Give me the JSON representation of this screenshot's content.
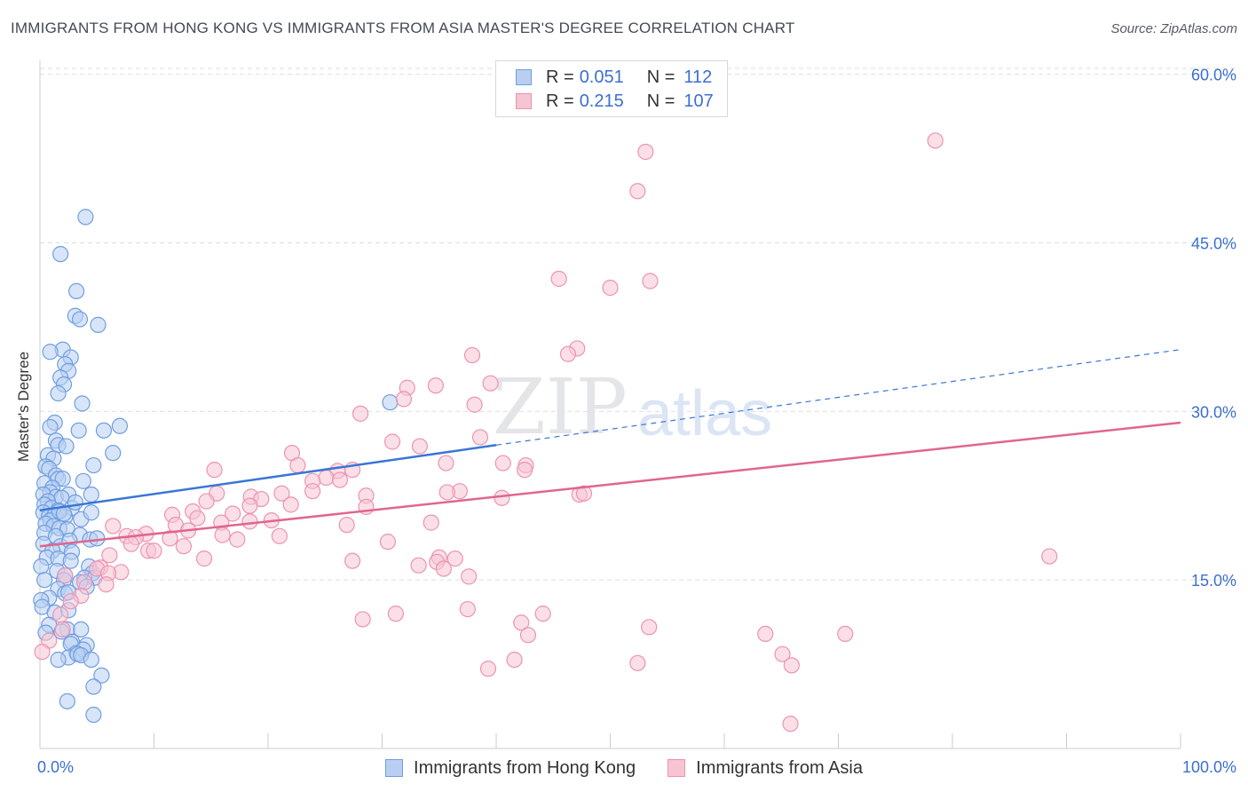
{
  "header": {
    "title": "IMMIGRANTS FROM HONG KONG VS IMMIGRANTS FROM ASIA MASTER'S DEGREE CORRELATION CHART",
    "source": "Source: ZipAtlas.com"
  },
  "watermark": {
    "zip": "ZIP",
    "atlas": "atlas"
  },
  "legend_top": {
    "rows": [
      {
        "r_label": "R =",
        "r_value": "0.051",
        "n_label": "N =",
        "n_value": "112"
      },
      {
        "r_label": "R =",
        "r_value": "0.215",
        "n_label": "N =",
        "n_value": "107"
      }
    ]
  },
  "colors": {
    "blue_fill": "#b8cff2",
    "blue_stroke": "#6f9ee0",
    "blue_line": "#3a76d4",
    "pink_fill": "#f7c4d4",
    "pink_stroke": "#ec93b1",
    "pink_line": "#e0668e",
    "value_text": "#3b6fd1",
    "grid": "#dcdee2"
  },
  "chart_data": {
    "type": "scatter",
    "title": "IMMIGRANTS FROM HONG KONG VS IMMIGRANTS FROM ASIA MASTER'S DEGREE CORRELATION CHART",
    "xlabel": "",
    "ylabel": "Master's Degree",
    "xlim": [
      0,
      100
    ],
    "ylim": [
      0,
      61
    ],
    "x_tick_labels": [
      {
        "value": 0,
        "label": "0.0%"
      },
      {
        "value": 100,
        "label": "100.0%"
      }
    ],
    "y_tick_labels": [
      {
        "value": 15,
        "label": "15.0%"
      },
      {
        "value": 30,
        "label": "30.0%"
      },
      {
        "value": 45,
        "label": "45.0%"
      },
      {
        "value": 60,
        "label": "60.0%"
      }
    ],
    "series": [
      {
        "name": "Immigrants from Hong Kong",
        "color": "blue",
        "r": 0.051,
        "n": 112,
        "trend": {
          "x0": 0,
          "y0": 21.2,
          "x1": 40,
          "y1": 27.0,
          "dash_to_x": 100,
          "dash_to_y": 35.5
        },
        "points": [
          [
            4.0,
            47.3
          ],
          [
            1.8,
            44.0
          ],
          [
            3.2,
            40.7
          ],
          [
            3.1,
            38.5
          ],
          [
            3.5,
            38.2
          ],
          [
            5.1,
            37.7
          ],
          [
            2.0,
            35.5
          ],
          [
            0.9,
            35.3
          ],
          [
            2.7,
            34.8
          ],
          [
            2.2,
            34.2
          ],
          [
            2.5,
            33.6
          ],
          [
            1.8,
            33.0
          ],
          [
            2.1,
            32.4
          ],
          [
            1.6,
            31.6
          ],
          [
            3.7,
            30.7
          ],
          [
            30.7,
            30.8
          ],
          [
            1.3,
            29.0
          ],
          [
            0.9,
            28.6
          ],
          [
            3.4,
            28.3
          ],
          [
            5.6,
            28.3
          ],
          [
            7.0,
            28.7
          ],
          [
            1.4,
            27.4
          ],
          [
            1.6,
            27.0
          ],
          [
            2.3,
            26.9
          ],
          [
            0.7,
            26.1
          ],
          [
            6.4,
            26.3
          ],
          [
            1.2,
            25.8
          ],
          [
            0.5,
            25.1
          ],
          [
            0.8,
            24.9
          ],
          [
            4.7,
            25.2
          ],
          [
            1.4,
            24.3
          ],
          [
            1.6,
            24.0
          ],
          [
            2.0,
            24.0
          ],
          [
            0.4,
            23.6
          ],
          [
            1.1,
            23.2
          ],
          [
            3.8,
            23.8
          ],
          [
            0.9,
            22.8
          ],
          [
            0.3,
            22.6
          ],
          [
            1.4,
            22.4
          ],
          [
            2.5,
            22.6
          ],
          [
            1.9,
            22.3
          ],
          [
            0.7,
            22.0
          ],
          [
            4.5,
            22.6
          ],
          [
            0.4,
            21.7
          ],
          [
            1.0,
            21.4
          ],
          [
            1.6,
            21.2
          ],
          [
            2.8,
            21.4
          ],
          [
            3.1,
            21.9
          ],
          [
            0.3,
            21.0
          ],
          [
            0.8,
            20.7
          ],
          [
            1.3,
            20.8
          ],
          [
            0.9,
            20.3
          ],
          [
            2.2,
            20.6
          ],
          [
            3.6,
            20.4
          ],
          [
            4.5,
            21.0
          ],
          [
            0.5,
            20.0
          ],
          [
            1.2,
            19.8
          ],
          [
            1.7,
            19.6
          ],
          [
            0.4,
            19.2
          ],
          [
            2.4,
            19.5
          ],
          [
            1.4,
            18.9
          ],
          [
            3.5,
            19.0
          ],
          [
            4.4,
            18.6
          ],
          [
            5.0,
            18.7
          ],
          [
            0.3,
            18.2
          ],
          [
            1.8,
            18.0
          ],
          [
            2.6,
            18.5
          ],
          [
            1.1,
            17.6
          ],
          [
            2.8,
            17.5
          ],
          [
            0.6,
            17.0
          ],
          [
            1.6,
            16.9
          ],
          [
            2.7,
            16.7
          ],
          [
            0.1,
            16.2
          ],
          [
            1.5,
            15.8
          ],
          [
            4.3,
            16.2
          ],
          [
            2.2,
            15.4
          ],
          [
            4.6,
            15.6
          ],
          [
            3.9,
            15.2
          ],
          [
            0.4,
            15.0
          ],
          [
            2.1,
            15.0
          ],
          [
            4.8,
            15.2
          ],
          [
            3.5,
            14.8
          ],
          [
            4.1,
            14.4
          ],
          [
            1.6,
            14.2
          ],
          [
            2.2,
            13.8
          ],
          [
            2.5,
            13.9
          ],
          [
            0.8,
            13.4
          ],
          [
            0.1,
            13.2
          ],
          [
            0.2,
            12.6
          ],
          [
            1.3,
            12.1
          ],
          [
            2.5,
            12.3
          ],
          [
            0.8,
            11.0
          ],
          [
            2.4,
            10.6
          ],
          [
            3.6,
            10.6
          ],
          [
            0.5,
            10.3
          ],
          [
            1.9,
            10.4
          ],
          [
            2.8,
            9.5
          ],
          [
            4.1,
            9.2
          ],
          [
            2.7,
            9.3
          ],
          [
            3.2,
            8.5
          ],
          [
            3.8,
            8.8
          ],
          [
            2.5,
            8.1
          ],
          [
            3.3,
            8.4
          ],
          [
            1.6,
            7.9
          ],
          [
            3.6,
            8.3
          ],
          [
            4.5,
            7.9
          ],
          [
            5.4,
            6.5
          ],
          [
            4.7,
            5.5
          ],
          [
            2.4,
            4.2
          ],
          [
            4.7,
            3.0
          ],
          [
            1.7,
            21.1
          ],
          [
            2.1,
            20.9
          ]
        ]
      },
      {
        "name": "Immigrants from Asia",
        "color": "pink",
        "r": 0.215,
        "n": 107,
        "trend": {
          "x0": 0,
          "y0": 18.0,
          "x1": 100,
          "y1": 29.0
        },
        "points": [
          [
            78.5,
            54.1
          ],
          [
            53.1,
            53.1
          ],
          [
            52.4,
            49.6
          ],
          [
            45.5,
            41.8
          ],
          [
            50.0,
            41.0
          ],
          [
            53.5,
            41.6
          ],
          [
            47.1,
            35.6
          ],
          [
            46.3,
            35.1
          ],
          [
            37.9,
            35.0
          ],
          [
            34.7,
            32.3
          ],
          [
            39.5,
            32.5
          ],
          [
            32.2,
            32.1
          ],
          [
            31.9,
            31.1
          ],
          [
            38.1,
            30.6
          ],
          [
            28.1,
            29.8
          ],
          [
            38.6,
            27.7
          ],
          [
            30.9,
            27.3
          ],
          [
            33.3,
            26.9
          ],
          [
            22.1,
            26.3
          ],
          [
            22.6,
            25.2
          ],
          [
            35.6,
            25.4
          ],
          [
            40.6,
            25.4
          ],
          [
            42.6,
            25.2
          ],
          [
            42.5,
            24.8
          ],
          [
            15.3,
            24.8
          ],
          [
            26.1,
            24.7
          ],
          [
            27.4,
            24.8
          ],
          [
            25.1,
            24.1
          ],
          [
            26.3,
            23.9
          ],
          [
            23.9,
            23.8
          ],
          [
            36.8,
            22.9
          ],
          [
            15.5,
            22.7
          ],
          [
            23.9,
            22.9
          ],
          [
            21.2,
            22.7
          ],
          [
            18.5,
            22.4
          ],
          [
            28.6,
            22.5
          ],
          [
            35.7,
            22.8
          ],
          [
            40.5,
            22.3
          ],
          [
            47.3,
            22.6
          ],
          [
            14.6,
            22.0
          ],
          [
            19.4,
            22.2
          ],
          [
            22.0,
            21.7
          ],
          [
            18.4,
            21.6
          ],
          [
            28.6,
            21.5
          ],
          [
            13.4,
            21.1
          ],
          [
            16.9,
            20.9
          ],
          [
            11.6,
            20.8
          ],
          [
            13.8,
            20.5
          ],
          [
            18.4,
            20.2
          ],
          [
            15.9,
            20.1
          ],
          [
            20.3,
            20.3
          ],
          [
            34.3,
            20.1
          ],
          [
            11.9,
            19.9
          ],
          [
            6.4,
            19.8
          ],
          [
            26.9,
            19.9
          ],
          [
            13.0,
            19.4
          ],
          [
            9.3,
            19.1
          ],
          [
            7.6,
            18.9
          ],
          [
            16.0,
            19.0
          ],
          [
            8.4,
            18.8
          ],
          [
            21.0,
            18.9
          ],
          [
            11.4,
            18.7
          ],
          [
            17.3,
            18.6
          ],
          [
            30.5,
            18.4
          ],
          [
            8.0,
            18.2
          ],
          [
            12.6,
            18.0
          ],
          [
            9.5,
            17.6
          ],
          [
            10.0,
            17.6
          ],
          [
            6.1,
            17.2
          ],
          [
            14.4,
            16.9
          ],
          [
            35.0,
            17.0
          ],
          [
            36.4,
            16.9
          ],
          [
            34.8,
            16.6
          ],
          [
            27.4,
            16.7
          ],
          [
            5.3,
            16.1
          ],
          [
            5.0,
            16.0
          ],
          [
            7.1,
            15.7
          ],
          [
            33.2,
            16.3
          ],
          [
            35.4,
            16.0
          ],
          [
            6.0,
            15.6
          ],
          [
            37.6,
            15.3
          ],
          [
            2.2,
            15.4
          ],
          [
            3.9,
            14.8
          ],
          [
            5.8,
            14.6
          ],
          [
            3.6,
            13.6
          ],
          [
            2.7,
            13.1
          ],
          [
            31.2,
            12.0
          ],
          [
            37.5,
            12.4
          ],
          [
            44.1,
            12.0
          ],
          [
            1.8,
            11.9
          ],
          [
            42.2,
            11.2
          ],
          [
            28.3,
            11.5
          ],
          [
            2.0,
            10.6
          ],
          [
            53.4,
            10.8
          ],
          [
            63.6,
            10.2
          ],
          [
            70.6,
            10.2
          ],
          [
            42.8,
            10.1
          ],
          [
            0.8,
            9.6
          ],
          [
            0.2,
            8.6
          ],
          [
            65.1,
            8.4
          ],
          [
            52.4,
            7.6
          ],
          [
            65.9,
            7.4
          ],
          [
            39.3,
            7.1
          ],
          [
            41.6,
            7.9
          ],
          [
            88.5,
            17.1
          ],
          [
            65.8,
            2.2
          ],
          [
            47.7,
            22.7
          ]
        ]
      }
    ]
  },
  "legend_bottom": {
    "items": [
      {
        "label": "Immigrants from Hong Kong"
      },
      {
        "label": "Immigrants from Asia"
      }
    ]
  }
}
